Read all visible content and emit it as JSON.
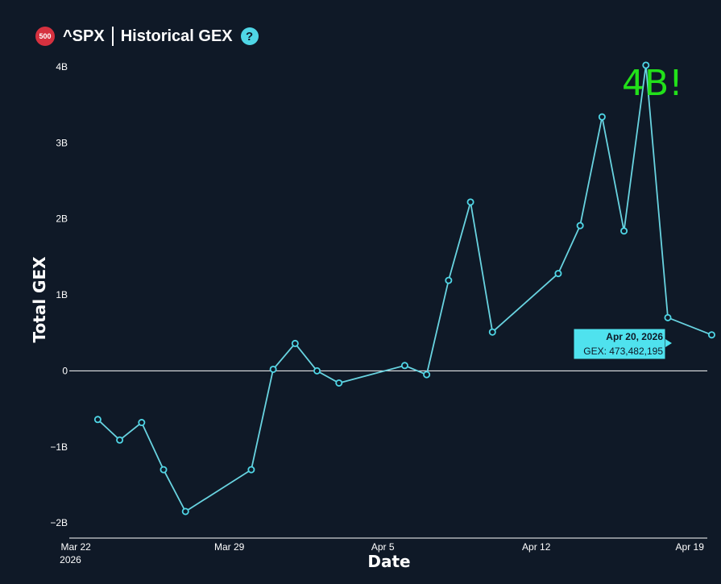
{
  "header": {
    "badge": "500",
    "ticker": "^SPX",
    "title": "Historical GEX",
    "help_icon": "question-mark-icon"
  },
  "colors": {
    "background": "#0f1927",
    "line": "#68d3e0",
    "marker": "#4fd6e6",
    "badge": "#d6313f",
    "annotation": "#22e01a",
    "tooltip": "#4fe2ee"
  },
  "chart_data": {
    "type": "line",
    "title": "Historical GEX",
    "xlabel": "Date",
    "ylabel": "Total GEX",
    "ylim": [
      -2200000000,
      4200000000
    ],
    "xlim_days": [
      -0.3,
      28.8
    ],
    "x_origin": "Mar 22, 2026",
    "x_ticks": [
      {
        "day": 0,
        "label": "Mar 22",
        "sublabel": "2026"
      },
      {
        "day": 7,
        "label": "Mar 29",
        "sublabel": ""
      },
      {
        "day": 14,
        "label": "Apr 5",
        "sublabel": ""
      },
      {
        "day": 21,
        "label": "Apr 12",
        "sublabel": ""
      },
      {
        "day": 28,
        "label": "Apr 19",
        "sublabel": ""
      }
    ],
    "y_ticks": [
      {
        "value": 4000000000,
        "label": "4B"
      },
      {
        "value": 3000000000,
        "label": "3B"
      },
      {
        "value": 2000000000,
        "label": "2B"
      },
      {
        "value": 1000000000,
        "label": "1B"
      },
      {
        "value": 0,
        "label": "0"
      },
      {
        "value": -1000000000,
        "label": "−1B"
      },
      {
        "value": -2000000000,
        "label": "−2B"
      }
    ],
    "series": [
      {
        "name": "GEX",
        "x_days": [
          1,
          2,
          3,
          4,
          5,
          8,
          9,
          10,
          11,
          12,
          15,
          16,
          17,
          18,
          19,
          22,
          23,
          24,
          25,
          26,
          27,
          29
        ],
        "values": [
          -640000000,
          -910000000,
          -680000000,
          -1300000000,
          -1850000000,
          -1300000000,
          20000000,
          360000000,
          0,
          -160000000,
          70000000,
          -50000000,
          1190000000,
          2220000000,
          510000000,
          1280000000,
          1910000000,
          3340000000,
          1840000000,
          4020000000,
          700000000,
          473482195
        ]
      }
    ],
    "tooltip": {
      "date": "Apr 20, 2026",
      "text": "GEX: 473,482,195"
    },
    "annotation": "4B!"
  }
}
